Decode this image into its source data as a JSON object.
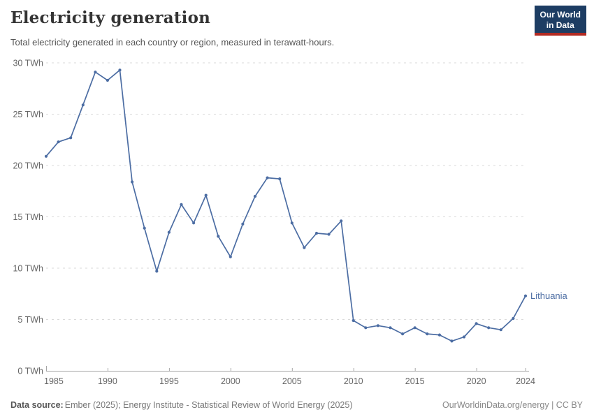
{
  "header": {
    "title": "Electricity generation",
    "subtitle": "Total electricity generated in each country or region, measured in terawatt-hours.",
    "logo": {
      "line1": "Our World",
      "line2": "in Data"
    }
  },
  "chart_data": {
    "type": "line",
    "title": "Electricity generation",
    "subtitle": "Total electricity generated in each country or region, measured in terawatt-hours.",
    "unit": "TWh",
    "x": [
      1985,
      1986,
      1987,
      1988,
      1989,
      1990,
      1991,
      1992,
      1993,
      1994,
      1995,
      1996,
      1997,
      1998,
      1999,
      2000,
      2001,
      2002,
      2003,
      2004,
      2005,
      2006,
      2007,
      2008,
      2009,
      2010,
      2011,
      2012,
      2013,
      2014,
      2015,
      2016,
      2017,
      2018,
      2019,
      2020,
      2021,
      2022,
      2023,
      2024
    ],
    "series": [
      {
        "name": "Lithuania",
        "color": "#4c6da3",
        "values": [
          20.9,
          22.3,
          22.7,
          25.9,
          29.1,
          28.3,
          29.3,
          18.4,
          13.9,
          9.7,
          13.5,
          16.2,
          14.4,
          17.1,
          13.1,
          11.1,
          14.3,
          17.0,
          18.8,
          18.7,
          14.4,
          12.0,
          13.4,
          13.3,
          14.6,
          4.9,
          4.2,
          4.4,
          4.2,
          3.6,
          4.2,
          3.6,
          3.5,
          2.9,
          3.3,
          4.6,
          4.2,
          4.0,
          5.1,
          7.3
        ]
      }
    ],
    "ylim": [
      0,
      30
    ],
    "yticks": [
      0,
      5,
      10,
      15,
      20,
      25,
      30
    ],
    "ytick_labels": [
      "0 TWh",
      "5 TWh",
      "10 TWh",
      "15 TWh",
      "20 TWh",
      "25 TWh",
      "30 TWh"
    ],
    "xticks": [
      1985,
      1990,
      1995,
      2000,
      2005,
      2010,
      2015,
      2020,
      2024
    ],
    "grid": "horizontal-dashed",
    "legend_position": "end-of-line-label"
  },
  "footer": {
    "data_source_label": "Data source:",
    "data_source_text": "Ember (2025); Energy Institute - Statistical Review of World Energy (2025)",
    "attribution": "OurWorldinData.org/energy | CC BY"
  },
  "colors": {
    "line_blue": "#4c6da3",
    "logo_navy": "#1d3d63",
    "logo_red": "#b22a22",
    "gridline": "#dadada",
    "axis": "#a6a6a6",
    "tick_text": "#666666",
    "title_text": "#333333",
    "subtitle_text": "#555555",
    "footer_text": "#888888"
  }
}
